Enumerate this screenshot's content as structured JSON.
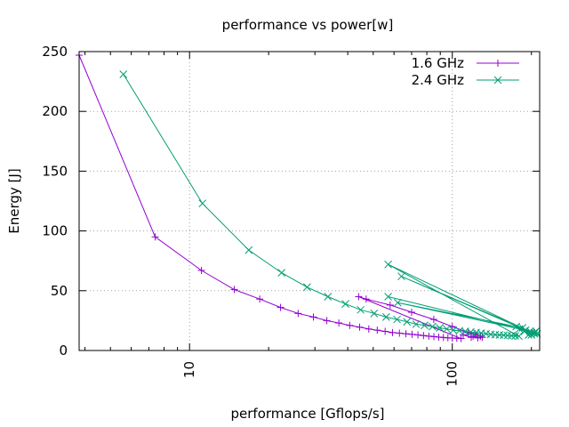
{
  "chart_data": {
    "type": "line",
    "title": "performance vs power[w]",
    "xlabel": "performance [Gflops/s]",
    "ylabel": "Energy [J]",
    "x_scale": "log",
    "xlim": [
      3.8,
      215
    ],
    "ylim": [
      0,
      250
    ],
    "x_ticks": [
      10,
      100
    ],
    "x_tick_labels": [
      "10",
      "100"
    ],
    "y_ticks": [
      0,
      50,
      100,
      150,
      200,
      250
    ],
    "y_tick_labels": [
      "0",
      "50",
      "100",
      "150",
      "200",
      "250"
    ],
    "grid": true,
    "legend_position": "top-right",
    "series": [
      {
        "name": "1.6 GHz",
        "color": "#9400d3",
        "marker": "plus",
        "points": [
          [
            3.8,
            247
          ],
          [
            7.4,
            95
          ],
          [
            11.1,
            67
          ],
          [
            14.8,
            51
          ],
          [
            18.5,
            43
          ],
          [
            22.2,
            36
          ],
          [
            25.9,
            31
          ],
          [
            29.6,
            28
          ],
          [
            33.3,
            25
          ],
          [
            37.0,
            23
          ],
          [
            40.7,
            21
          ],
          [
            44.4,
            19.5
          ],
          [
            48.1,
            18
          ],
          [
            51.8,
            17
          ],
          [
            55.5,
            16
          ],
          [
            59.2,
            15
          ],
          [
            62.9,
            14.5
          ],
          [
            66.6,
            14
          ],
          [
            70.3,
            13.5
          ],
          [
            74.0,
            13
          ],
          [
            77.7,
            12.5
          ],
          [
            81.4,
            12
          ],
          [
            85.1,
            11.6
          ],
          [
            88.8,
            11.2
          ],
          [
            92.5,
            10.9
          ],
          [
            96.2,
            10.6
          ],
          [
            100,
            10.4
          ],
          [
            104,
            10.2
          ],
          [
            108,
            10
          ],
          [
            44,
            45
          ],
          [
            47,
            43
          ],
          [
            58,
            38
          ],
          [
            70,
            32
          ],
          [
            85,
            26
          ],
          [
            100,
            20
          ],
          [
            115,
            15
          ],
          [
            128,
            12
          ],
          [
            118,
            11
          ],
          [
            110,
            13
          ],
          [
            122,
            14
          ],
          [
            130,
            11
          ],
          [
            125,
            10.5
          ],
          [
            120,
            12
          ]
        ]
      },
      {
        "name": "2.4 GHz",
        "color": "#009e73",
        "marker": "cross",
        "points": [
          [
            5.6,
            231
          ],
          [
            11.2,
            123
          ],
          [
            16.8,
            84
          ],
          [
            22.4,
            65
          ],
          [
            28.0,
            53
          ],
          [
            33.6,
            45
          ],
          [
            39.2,
            39
          ],
          [
            44.8,
            34
          ],
          [
            50.4,
            31
          ],
          [
            56.0,
            28
          ],
          [
            61.6,
            26
          ],
          [
            67.2,
            24
          ],
          [
            72.8,
            22
          ],
          [
            78.4,
            21
          ],
          [
            84.0,
            20
          ],
          [
            89.6,
            19
          ],
          [
            95.2,
            18
          ],
          [
            100.8,
            17
          ],
          [
            106.4,
            16.5
          ],
          [
            112.0,
            16
          ],
          [
            117.6,
            15.5
          ],
          [
            123.2,
            15
          ],
          [
            128.8,
            14.5
          ],
          [
            134.4,
            14
          ],
          [
            140.0,
            13.5
          ],
          [
            145.6,
            13.2
          ],
          [
            151.2,
            13
          ],
          [
            156.8,
            12.8
          ],
          [
            162.4,
            12.6
          ],
          [
            168.0,
            12.4
          ],
          [
            173.6,
            12.2
          ],
          [
            179.2,
            12.0
          ],
          [
            57,
            72
          ],
          [
            205,
            14
          ],
          [
            64,
            62
          ],
          [
            198,
            16
          ],
          [
            57,
            45
          ],
          [
            190,
            17
          ],
          [
            62,
            40
          ],
          [
            185,
            19
          ],
          [
            175,
            20
          ],
          [
            200,
            15
          ],
          [
            210,
            14
          ],
          [
            195,
            13
          ],
          [
            205,
            15
          ],
          [
            188,
            16
          ],
          [
            180,
            18
          ],
          [
            200,
            13
          ],
          [
            208,
            16
          ]
        ]
      }
    ]
  }
}
